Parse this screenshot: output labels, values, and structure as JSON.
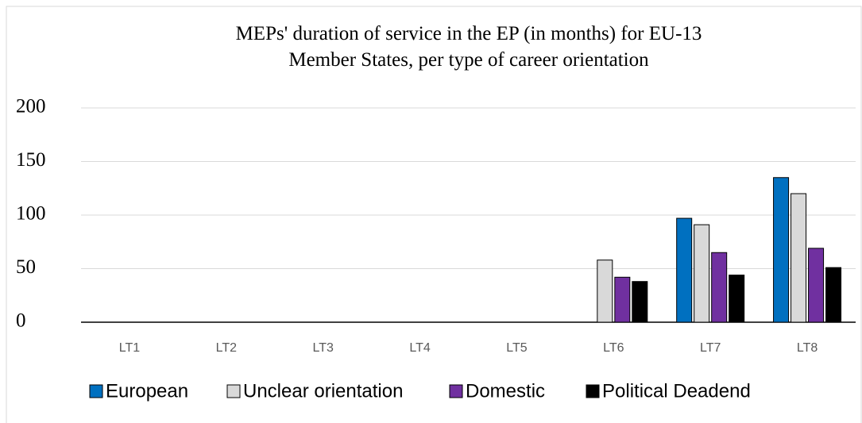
{
  "chart_data": {
    "type": "bar",
    "title": [
      "MEPs' duration of service in the EP (in months) for EU-13",
      "Member States, per type of career orientation"
    ],
    "categories": [
      "LT1",
      "LT2",
      "LT3",
      "LT4",
      "LT5",
      "LT6",
      "LT7",
      "LT8"
    ],
    "series": [
      {
        "name": "European",
        "color": "#0070c0",
        "values": [
          null,
          null,
          null,
          null,
          null,
          null,
          97,
          135
        ]
      },
      {
        "name": "Unclear orientation",
        "color": "#d9d9d9",
        "values": [
          null,
          null,
          null,
          null,
          null,
          58,
          91,
          120
        ]
      },
      {
        "name": "Domestic",
        "color": "#7030a0",
        "values": [
          null,
          null,
          null,
          null,
          null,
          42,
          65,
          69
        ]
      },
      {
        "name": "Political Deadend",
        "color": "#000000",
        "values": [
          null,
          null,
          null,
          null,
          null,
          38,
          44,
          51
        ]
      }
    ],
    "ylim": [
      0,
      200
    ],
    "yticks": [
      0,
      50,
      100,
      150,
      200
    ],
    "grid": true,
    "legend": "bottom"
  }
}
